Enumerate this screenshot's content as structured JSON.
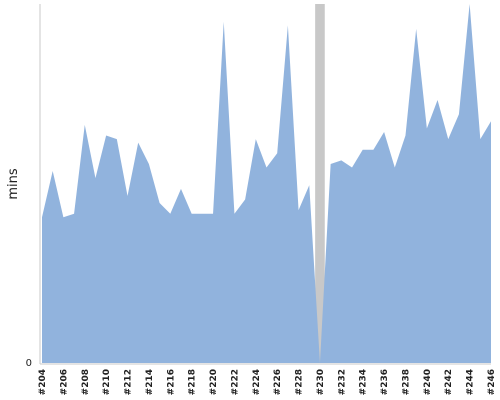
{
  "chart_data": {
    "type": "area",
    "ylabel": "mins",
    "y_tick_labels": [
      "0"
    ],
    "categories": [
      "#204",
      "#205",
      "#206",
      "#207",
      "#208",
      "#209",
      "#210",
      "#211",
      "#212",
      "#213",
      "#214",
      "#215",
      "#216",
      "#217",
      "#218",
      "#219",
      "#220",
      "#221",
      "#222",
      "#223",
      "#224",
      "#225",
      "#226",
      "#227",
      "#228",
      "#229",
      "#230",
      "#231",
      "#232",
      "#233",
      "#234",
      "#235",
      "#236",
      "#237",
      "#238",
      "#239",
      "#240",
      "#241",
      "#242",
      "#243",
      "#244",
      "#245",
      "#246"
    ],
    "x_tick_labels": [
      "#204",
      "#206",
      "#208",
      "#210",
      "#212",
      "#214",
      "#216",
      "#218",
      "#220",
      "#222",
      "#224",
      "#226",
      "#228",
      "#230",
      "#232",
      "#234",
      "#236",
      "#238",
      "#240",
      "#242",
      "#244",
      "#246"
    ],
    "values": [
      41,
      54,
      41,
      42,
      67,
      52,
      64,
      63,
      47,
      62,
      56,
      45,
      42,
      49,
      42,
      42,
      42,
      96,
      42,
      46,
      63,
      55,
      59,
      95,
      43,
      50,
      0,
      56,
      57,
      55,
      60,
      60,
      65,
      55,
      64,
      94,
      66,
      74,
      63,
      70,
      101,
      63,
      68
    ],
    "ylim": [
      0,
      101
    ],
    "fill_color": "#91b3dd",
    "failed_run_color": "#c8c8c8",
    "axis_color": "#c8c8c8",
    "grid": false,
    "legend": "none"
  }
}
